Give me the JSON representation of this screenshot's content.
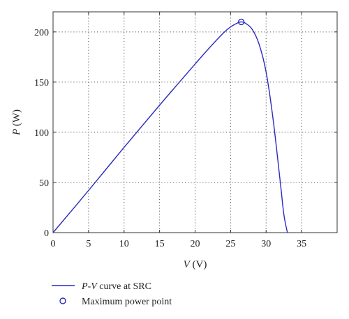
{
  "chart_data": {
    "type": "line",
    "xlabel": {
      "var": "V",
      "unit": " (V)"
    },
    "ylabel": {
      "var": "P",
      "unit": " (W)"
    },
    "xlim": [
      0,
      40
    ],
    "ylim": [
      0,
      220
    ],
    "xticks": [
      0,
      5,
      10,
      15,
      20,
      25,
      30,
      35
    ],
    "yticks": [
      0,
      50,
      100,
      150,
      200
    ],
    "grid": true,
    "legend_position": "bottom-left, below plot",
    "series": [
      {
        "name": {
          "a": "P",
          "b": "V",
          "rest": " curve at SRC"
        },
        "color": "#2a2abf",
        "x": [
          0,
          5,
          10,
          15,
          20,
          22,
          24,
          25,
          26,
          26.5,
          27,
          28,
          29,
          30,
          31,
          32,
          32.5,
          33
        ],
        "y": [
          0,
          42,
          85,
          127,
          168,
          184,
          199,
          205,
          209,
          210,
          209,
          203,
          188,
          160,
          112,
          50,
          18,
          0
        ]
      },
      {
        "name": {
          "text": "Maximum power point"
        },
        "color": "#2a2abf",
        "marker": "circle",
        "x": [
          26.5
        ],
        "y": [
          210
        ]
      }
    ]
  }
}
